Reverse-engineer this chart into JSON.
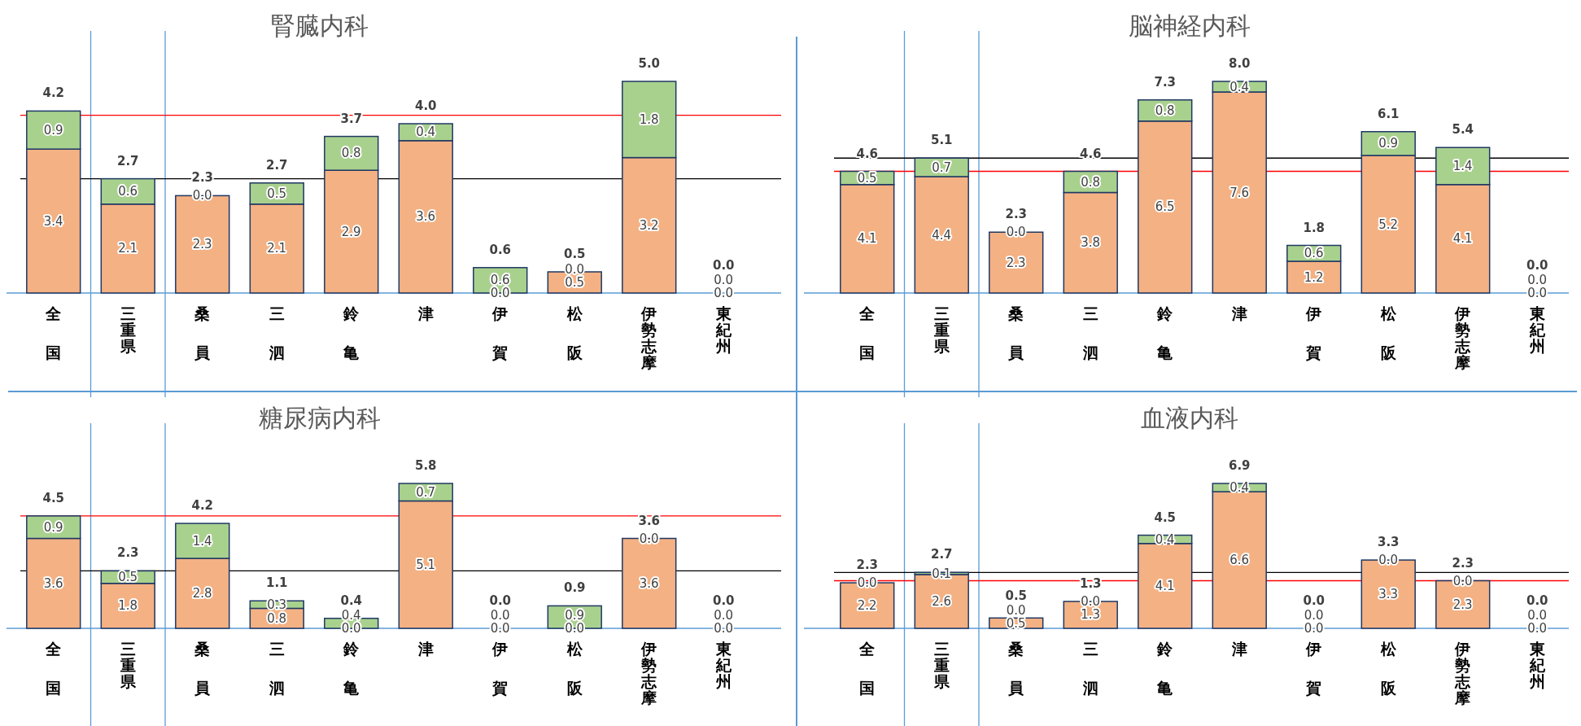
{
  "chart_data": [
    {
      "type": "bar",
      "title": "腎臓内科",
      "categories": [
        "全国",
        "三重県",
        "桑員",
        "三泗",
        "鈴亀",
        "津",
        "伊賀",
        "松阪",
        "伊勢志摩",
        "東紀州"
      ],
      "stacked": true,
      "series": [
        {
          "color": "#f4b183",
          "values": [
            3.4,
            2.1,
            2.3,
            2.1,
            2.9,
            3.6,
            0.0,
            0.5,
            3.2,
            0.0
          ],
          "value_labels": [
            "3.4",
            "2.1",
            "2.3",
            "2.1",
            "2.9",
            "3.6",
            "0.0",
            "0.5",
            "3.2",
            "0.0"
          ]
        },
        {
          "color": "#a9d18e",
          "values": [
            0.9,
            0.6,
            0.0,
            0.5,
            0.8,
            0.4,
            0.6,
            0.0,
            1.8,
            0.0
          ],
          "value_labels": [
            "0.9",
            "0.6",
            "0.0",
            "0.5",
            "0.8",
            "0.4",
            "0.6",
            "0.0",
            "1.8",
            "0.0"
          ]
        }
      ],
      "totals": [
        "4.2",
        "2.7",
        "2.3",
        "2.7",
        "3.7",
        "4.0",
        "0.6",
        "0.5",
        "5.0",
        "0.0"
      ],
      "ref_lines": [
        {
          "axis": "y",
          "value": 4.2,
          "color": "#ff0000"
        },
        {
          "axis": "y",
          "value": 2.7,
          "color": "#000000"
        }
      ]
    },
    {
      "type": "bar",
      "title": "脳神経内科",
      "categories": [
        "全国",
        "三重県",
        "桑員",
        "三泗",
        "鈴亀",
        "津",
        "伊賀",
        "松阪",
        "伊勢志摩",
        "東紀州"
      ],
      "stacked": true,
      "series": [
        {
          "color": "#f4b183",
          "values": [
            4.1,
            4.4,
            2.3,
            3.8,
            6.5,
            7.6,
            1.2,
            5.2,
            4.1,
            0.0
          ],
          "value_labels": [
            "4.1",
            "4.4",
            "2.3",
            "3.8",
            "6.5",
            "7.6",
            "1.2",
            "5.2",
            "4.1",
            "0.0"
          ]
        },
        {
          "color": "#a9d18e",
          "values": [
            0.5,
            0.7,
            0.0,
            0.8,
            0.8,
            0.4,
            0.6,
            0.9,
            1.4,
            0.0
          ],
          "value_labels": [
            "0.5",
            "0.7",
            "0.0",
            "0.8",
            "0.8",
            "0.4",
            "0.6",
            "0.9",
            "1.4",
            "0.0"
          ]
        }
      ],
      "totals": [
        "4.6",
        "5.1",
        "2.3",
        "4.6",
        "7.3",
        "8.0",
        "1.8",
        "6.1",
        "5.4",
        "0.0"
      ],
      "ref_lines": [
        {
          "axis": "y",
          "value": 4.6,
          "color": "#ff0000"
        },
        {
          "axis": "y",
          "value": 5.1,
          "color": "#000000"
        }
      ]
    },
    {
      "type": "bar",
      "title": "糖尿病内科",
      "categories": [
        "全国",
        "三重県",
        "桑員",
        "三泗",
        "鈴亀",
        "津",
        "伊賀",
        "松阪",
        "伊勢志摩",
        "東紀州"
      ],
      "stacked": true,
      "series": [
        {
          "color": "#f4b183",
          "values": [
            3.6,
            1.8,
            2.8,
            0.8,
            0.0,
            5.1,
            0.0,
            0.0,
            3.6,
            0.0
          ],
          "value_labels": [
            "3.6",
            "1.8",
            "2.8",
            "0.8",
            "0.0",
            "5.1",
            "0.0",
            "0.0",
            "3.6",
            "0.0"
          ]
        },
        {
          "color": "#a9d18e",
          "values": [
            0.9,
            0.5,
            1.4,
            0.3,
            0.4,
            0.7,
            0.0,
            0.9,
            0.0,
            0.0
          ],
          "value_labels": [
            "0.9",
            "0.5",
            "1.4",
            "0.3",
            "0.4",
            "0.7",
            "0.0",
            "0.9",
            "0.0",
            "0.0"
          ]
        }
      ],
      "totals": [
        "4.5",
        "2.3",
        "4.2",
        "1.1",
        "0.4",
        "5.8",
        "0.0",
        "0.9",
        "3.6",
        "0.0"
      ],
      "ref_lines": [
        {
          "axis": "y",
          "value": 4.5,
          "color": "#ff0000"
        },
        {
          "axis": "y",
          "value": 2.3,
          "color": "#000000"
        }
      ]
    },
    {
      "type": "bar",
      "title": "血液内科",
      "categories": [
        "全国",
        "三重県",
        "桑員",
        "三泗",
        "鈴亀",
        "津",
        "伊賀",
        "松阪",
        "伊勢志摩",
        "東紀州"
      ],
      "stacked": true,
      "series": [
        {
          "color": "#f4b183",
          "values": [
            2.2,
            2.6,
            0.5,
            1.3,
            4.1,
            6.6,
            0.0,
            3.3,
            2.3,
            0.0
          ],
          "value_labels": [
            "2.2",
            "2.6",
            "0.5",
            "1.3",
            "4.1",
            "6.6",
            "0.0",
            "3.3",
            "2.3",
            "0.0"
          ]
        },
        {
          "color": "#a9d18e",
          "values": [
            0.0,
            0.1,
            0.0,
            0.0,
            0.4,
            0.4,
            0.0,
            0.0,
            0.0,
            0.0
          ],
          "value_labels": [
            "0.0",
            "0.1",
            "0.0",
            "0.0",
            "0.4",
            "0.4",
            "0.0",
            "0.0",
            "0.0",
            "0.0"
          ]
        }
      ],
      "totals": [
        "2.3",
        "2.7",
        "0.5",
        "1.3",
        "4.5",
        "6.9",
        "0.0",
        "3.3",
        "2.3",
        "0.0"
      ],
      "ref_lines": [
        {
          "axis": "y",
          "value": 2.3,
          "color": "#ff0000"
        },
        {
          "axis": "y",
          "value": 2.7,
          "color": "#000000"
        }
      ]
    }
  ]
}
